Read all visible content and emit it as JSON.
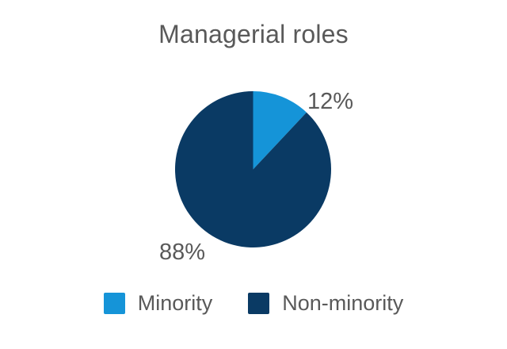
{
  "page": {
    "background": "#ffffff",
    "text_color": "#595959"
  },
  "chart_data": {
    "type": "pie",
    "title": "Managerial roles",
    "slices": [
      {
        "label": "Minority",
        "value": 12,
        "pct_label": "12%",
        "color": "#1594d8"
      },
      {
        "label": "Non-minority",
        "value": 88,
        "pct_label": "88%",
        "color": "#0a3a64"
      }
    ],
    "start_angle_deg": 0,
    "direction": "clockwise",
    "legend_position": "bottom",
    "legend": [
      "Minority",
      "Non-minority"
    ],
    "grid": false
  }
}
